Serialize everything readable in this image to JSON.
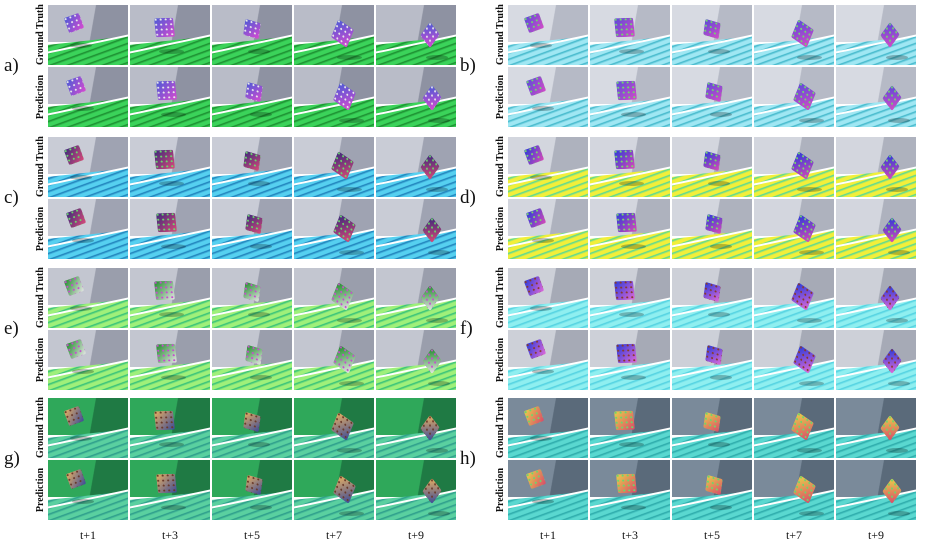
{
  "figure": {
    "time_steps": [
      "t+1",
      "t+3",
      "t+5",
      "t+7",
      "t+9"
    ],
    "row_labels": [
      "Ground Truth",
      "Prediction"
    ],
    "panels": [
      {
        "id": "a",
        "label": "a)",
        "wall": "#b9bcc8",
        "wall2": "#8e92a2",
        "floor_a": "#3bd35a",
        "floor_b": "#1a8a2e",
        "obj_a": "#4a5bd6",
        "obj_b": "#d84ad0",
        "obj_c": "#e8e8e8"
      },
      {
        "id": "b",
        "label": "b)",
        "wall": "#d7dae2",
        "wall2": "#b6bac6",
        "floor_a": "#9fe7f3",
        "floor_b": "#3fb6c9",
        "obj_a": "#5a4bd8",
        "obj_b": "#d44bc8",
        "obj_c": "#6fd86a"
      },
      {
        "id": "c",
        "label": "c)",
        "wall": "#c9ccd6",
        "wall2": "#9fa3b2",
        "floor_a": "#56d0f0",
        "floor_b": "#1c7db8",
        "obj_a": "#3a2a7a",
        "obj_b": "#d84a7a",
        "obj_c": "#6bd86b"
      },
      {
        "id": "d",
        "label": "d)",
        "wall": "#d3d6de",
        "wall2": "#aeb2be",
        "floor_a": "#f2ef3a",
        "floor_b": "#4fd89a",
        "obj_a": "#2a3bd8",
        "obj_b": "#d84ab8",
        "obj_c": "#7ad86a"
      },
      {
        "id": "e",
        "label": "e)",
        "wall": "#c3c6d0",
        "wall2": "#9a9eac",
        "floor_a": "#9ff07a",
        "floor_b": "#2fbf7a",
        "obj_a": "#1f8a2a",
        "obj_b": "#e6e6e6",
        "obj_c": "#c84ad0"
      },
      {
        "id": "f",
        "label": "f)",
        "wall": "#cdd0d8",
        "wall2": "#a6aab6",
        "floor_a": "#8feff0",
        "floor_b": "#4fd0e0",
        "obj_a": "#2a3bd8",
        "obj_b": "#e06ad8",
        "obj_c": "#8a3a2a"
      },
      {
        "id": "g",
        "label": "g)",
        "wall": "#2fa85a",
        "wall2": "#1f7a44",
        "floor_a": "#5ad0a0",
        "floor_b": "#2a9a8a",
        "obj_a": "#e8b060",
        "obj_b": "#3a4a9a",
        "obj_c": "#6a3a2a"
      },
      {
        "id": "h",
        "label": "h)",
        "wall": "#7a8a9a",
        "wall2": "#5a6a7a",
        "floor_a": "#5ad8d0",
        "floor_b": "#2aa8a8",
        "obj_a": "#e8d04a",
        "obj_b": "#d84a6a",
        "obj_c": "#6ad86a"
      }
    ]
  }
}
